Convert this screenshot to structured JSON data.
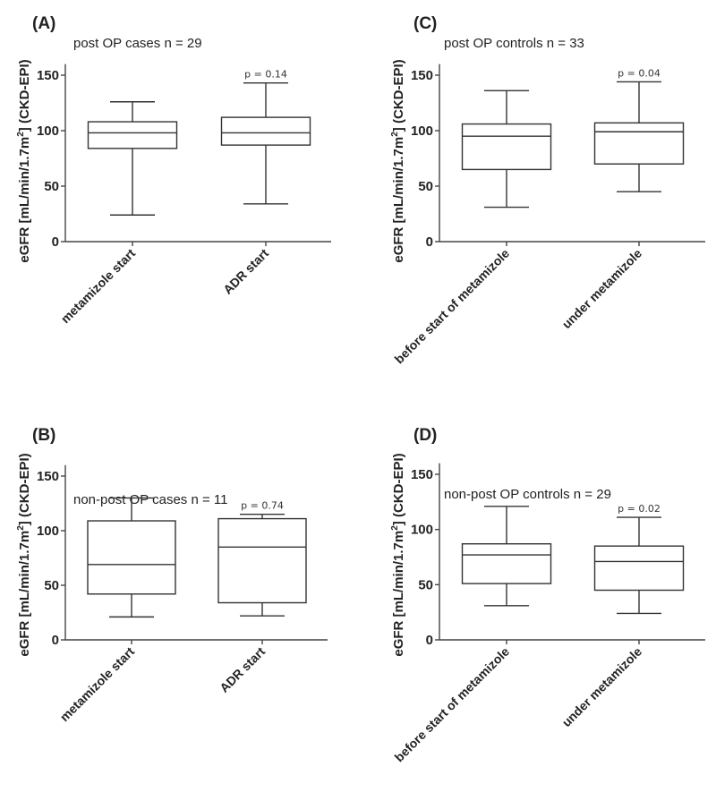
{
  "figure": {
    "ylabel_main": "eGFR [mL/min/1.7m",
    "ylabel_sup": "2",
    "ylabel_tail": "] (CKD-EPI)"
  },
  "chart_data": [
    {
      "type": "box",
      "panel": "(A)",
      "title": "post OP cases n = 29",
      "ylabel": "eGFR [mL/min/1.7m2] (CKD-EPI)",
      "ylim": [
        0,
        160
      ],
      "yticks": [
        0,
        50,
        100,
        150
      ],
      "categories": [
        "metamizole start",
        "ADR start"
      ],
      "boxes": [
        {
          "min": 24,
          "q1": 84,
          "median": 98,
          "q3": 108,
          "max": 126
        },
        {
          "min": 34,
          "q1": 87,
          "median": 98,
          "q3": 112,
          "max": 143
        }
      ],
      "annotation": "p = 0.14"
    },
    {
      "type": "box",
      "panel": "(B)",
      "title": "non-post OP cases n = 11",
      "ylabel": "eGFR [mL/min/1.7m2] (CKD-EPI)",
      "ylim": [
        0,
        160
      ],
      "yticks": [
        0,
        50,
        100,
        150
      ],
      "categories": [
        "metamizole start",
        "ADR start"
      ],
      "boxes": [
        {
          "min": 21,
          "q1": 42,
          "median": 69,
          "q3": 109,
          "max": 130
        },
        {
          "min": 22,
          "q1": 34,
          "median": 85,
          "q3": 111,
          "max": 115
        }
      ],
      "annotation": "p = 0.74"
    },
    {
      "type": "box",
      "panel": "(C)",
      "title": "post OP controls n = 33",
      "ylabel": "eGFR [mL/min/1.7m2] (CKD-EPI)",
      "ylim": [
        0,
        160
      ],
      "yticks": [
        0,
        50,
        100,
        150
      ],
      "categories": [
        "before start of metamizole",
        "under metamizole"
      ],
      "boxes": [
        {
          "min": 31,
          "q1": 65,
          "median": 95,
          "q3": 106,
          "max": 136
        },
        {
          "min": 45,
          "q1": 70,
          "median": 99,
          "q3": 107,
          "max": 144
        }
      ],
      "annotation": "p = 0.04"
    },
    {
      "type": "box",
      "panel": "(D)",
      "title": "non-post OP controls n = 29",
      "ylabel": "eGFR [mL/min/1.7m2] (CKD-EPI)",
      "ylim": [
        0,
        160
      ],
      "yticks": [
        0,
        50,
        100,
        150
      ],
      "categories": [
        "before start of metamizole",
        "under metamizole"
      ],
      "boxes": [
        {
          "min": 31,
          "q1": 51,
          "median": 77,
          "q3": 87,
          "max": 121
        },
        {
          "min": 24,
          "q1": 45,
          "median": 71,
          "q3": 85,
          "max": 111
        }
      ],
      "annotation": "p = 0.02"
    }
  ]
}
